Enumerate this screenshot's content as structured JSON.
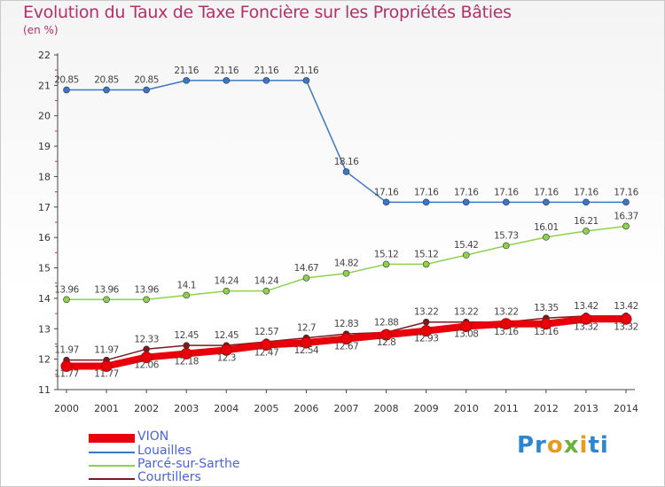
{
  "title": "Evolution du Taux de Taxe Foncière sur les Propriétés Bâties",
  "unit": "(en %)",
  "logo": "Proxiti",
  "chart_data": {
    "type": "line",
    "title": "Evolution du Taux de Taxe Foncière sur les Propriétés Bâties",
    "ylabel": "(en %)",
    "xlabel": "",
    "ylim": [
      11,
      22
    ],
    "yticks": [
      11,
      12,
      13,
      14,
      15,
      16,
      17,
      18,
      19,
      20,
      21,
      22
    ],
    "categories": [
      "2000",
      "2001",
      "2002",
      "2003",
      "2004",
      "2005",
      "2006",
      "2007",
      "2008",
      "2009",
      "2010",
      "2011",
      "2012",
      "2013",
      "2014"
    ],
    "grid": false,
    "legend": "bottom-left",
    "series": [
      {
        "name": "VION",
        "color": "#e8000b",
        "values": [
          11.77,
          11.77,
          12.06,
          12.18,
          12.3,
          12.47,
          12.54,
          12.67,
          12.8,
          12.93,
          13.08,
          13.16,
          13.16,
          13.32,
          13.32
        ]
      },
      {
        "name": "Louailles",
        "color": "#3b78c4",
        "values": [
          20.85,
          20.85,
          20.85,
          21.16,
          21.16,
          21.16,
          21.16,
          18.16,
          17.16,
          17.16,
          17.16,
          17.16,
          17.16,
          17.16,
          17.16
        ]
      },
      {
        "name": "Parcé-sur-Sarthe",
        "color": "#8fd14f",
        "values": [
          13.96,
          13.96,
          13.96,
          14.1,
          14.24,
          14.24,
          14.67,
          14.82,
          15.12,
          15.12,
          15.42,
          15.73,
          16.01,
          16.21,
          16.37
        ]
      },
      {
        "name": "Courtillers",
        "color": "#7a1a20",
        "values": [
          11.97,
          11.97,
          12.33,
          12.45,
          12.45,
          12.57,
          12.7,
          12.83,
          12.88,
          13.22,
          13.22,
          13.22,
          13.35,
          13.42,
          13.42
        ]
      }
    ]
  }
}
